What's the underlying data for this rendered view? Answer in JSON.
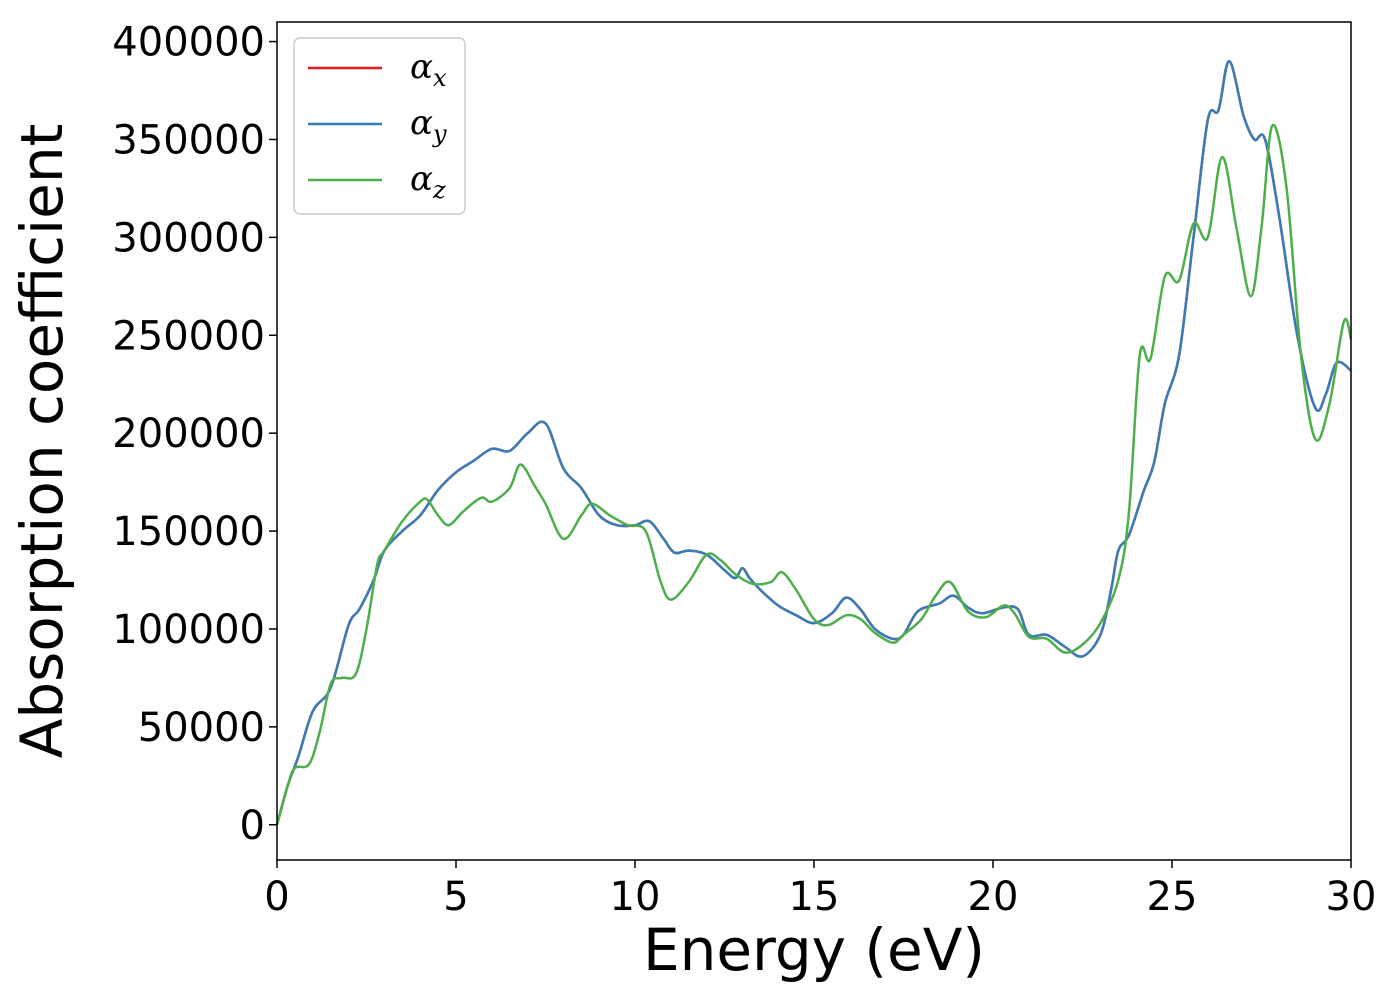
{
  "chart_data": {
    "type": "line",
    "title": "",
    "xlabel": "Energy (eV)",
    "ylabel": "Absorption coefficient",
    "xlim": [
      0,
      30
    ],
    "ylim": [
      -18000,
      410000
    ],
    "xticks": [
      0,
      5,
      10,
      15,
      20,
      25,
      30
    ],
    "yticks": [
      0,
      50000,
      100000,
      150000,
      200000,
      250000,
      300000,
      350000,
      400000
    ],
    "grid": false,
    "legend_position": "top-left",
    "series": [
      {
        "name": "αx",
        "symbol": "α",
        "subscript": "x",
        "color": "#e41a1c",
        "points": [
          [
            0,
            0
          ],
          [
            0.3,
            20000
          ],
          [
            0.6,
            35000
          ],
          [
            1.0,
            58000
          ],
          [
            1.5,
            70000
          ],
          [
            2.0,
            102000
          ],
          [
            2.3,
            110000
          ],
          [
            2.7,
            125000
          ],
          [
            3.0,
            140000
          ],
          [
            3.5,
            150000
          ],
          [
            4.0,
            158000
          ],
          [
            4.5,
            171000
          ],
          [
            5.0,
            180000
          ],
          [
            5.5,
            186000
          ],
          [
            6.0,
            192000
          ],
          [
            6.5,
            191000
          ],
          [
            7.0,
            200000
          ],
          [
            7.5,
            205000
          ],
          [
            8.0,
            182000
          ],
          [
            8.5,
            172000
          ],
          [
            9.0,
            158000
          ],
          [
            9.5,
            153000
          ],
          [
            10.0,
            153000
          ],
          [
            10.4,
            155000
          ],
          [
            10.8,
            146000
          ],
          [
            11.1,
            139000
          ],
          [
            11.5,
            140000
          ],
          [
            12.0,
            138000
          ],
          [
            12.5,
            130000
          ],
          [
            12.8,
            126000
          ],
          [
            13.0,
            131000
          ],
          [
            13.2,
            126000
          ],
          [
            13.5,
            120000
          ],
          [
            14.0,
            112000
          ],
          [
            14.5,
            107000
          ],
          [
            15.0,
            103000
          ],
          [
            15.5,
            108000
          ],
          [
            15.9,
            116000
          ],
          [
            16.3,
            110000
          ],
          [
            16.7,
            100000
          ],
          [
            17.2,
            95000
          ],
          [
            17.5,
            97000
          ],
          [
            17.9,
            109000
          ],
          [
            18.5,
            113000
          ],
          [
            18.9,
            117000
          ],
          [
            19.3,
            111000
          ],
          [
            19.7,
            108000
          ],
          [
            20.3,
            111000
          ],
          [
            20.7,
            110000
          ],
          [
            21.0,
            97000
          ],
          [
            21.5,
            97000
          ],
          [
            22.0,
            91000
          ],
          [
            22.5,
            86000
          ],
          [
            23.0,
            97000
          ],
          [
            23.3,
            120000
          ],
          [
            23.5,
            140000
          ],
          [
            23.8,
            148000
          ],
          [
            24.2,
            170000
          ],
          [
            24.5,
            185000
          ],
          [
            24.8,
            215000
          ],
          [
            25.2,
            240000
          ],
          [
            25.6,
            300000
          ],
          [
            26.0,
            360000
          ],
          [
            26.3,
            365000
          ],
          [
            26.6,
            390000
          ],
          [
            27.0,
            362000
          ],
          [
            27.3,
            350000
          ],
          [
            27.6,
            350000
          ],
          [
            28.0,
            310000
          ],
          [
            28.5,
            250000
          ],
          [
            29.0,
            213000
          ],
          [
            29.3,
            220000
          ],
          [
            29.6,
            236000
          ],
          [
            30.0,
            232000
          ]
        ]
      },
      {
        "name": "αy",
        "symbol": "α",
        "subscript": "y",
        "color": "#377eb8",
        "points": [
          [
            0,
            0
          ],
          [
            0.3,
            20000
          ],
          [
            0.6,
            35000
          ],
          [
            1.0,
            58000
          ],
          [
            1.5,
            70000
          ],
          [
            2.0,
            102000
          ],
          [
            2.3,
            110000
          ],
          [
            2.7,
            125000
          ],
          [
            3.0,
            140000
          ],
          [
            3.5,
            150000
          ],
          [
            4.0,
            158000
          ],
          [
            4.5,
            171000
          ],
          [
            5.0,
            180000
          ],
          [
            5.5,
            186000
          ],
          [
            6.0,
            192000
          ],
          [
            6.5,
            191000
          ],
          [
            7.0,
            200000
          ],
          [
            7.5,
            205000
          ],
          [
            8.0,
            182000
          ],
          [
            8.5,
            172000
          ],
          [
            9.0,
            158000
          ],
          [
            9.5,
            153000
          ],
          [
            10.0,
            153000
          ],
          [
            10.4,
            155000
          ],
          [
            10.8,
            146000
          ],
          [
            11.1,
            139000
          ],
          [
            11.5,
            140000
          ],
          [
            12.0,
            138000
          ],
          [
            12.5,
            130000
          ],
          [
            12.8,
            126000
          ],
          [
            13.0,
            131000
          ],
          [
            13.2,
            126000
          ],
          [
            13.5,
            120000
          ],
          [
            14.0,
            112000
          ],
          [
            14.5,
            107000
          ],
          [
            15.0,
            103000
          ],
          [
            15.5,
            108000
          ],
          [
            15.9,
            116000
          ],
          [
            16.3,
            110000
          ],
          [
            16.7,
            100000
          ],
          [
            17.2,
            95000
          ],
          [
            17.5,
            97000
          ],
          [
            17.9,
            109000
          ],
          [
            18.5,
            113000
          ],
          [
            18.9,
            117000
          ],
          [
            19.3,
            111000
          ],
          [
            19.7,
            108000
          ],
          [
            20.3,
            111000
          ],
          [
            20.7,
            110000
          ],
          [
            21.0,
            97000
          ],
          [
            21.5,
            97000
          ],
          [
            22.0,
            91000
          ],
          [
            22.5,
            86000
          ],
          [
            23.0,
            97000
          ],
          [
            23.3,
            120000
          ],
          [
            23.5,
            140000
          ],
          [
            23.8,
            148000
          ],
          [
            24.2,
            170000
          ],
          [
            24.5,
            185000
          ],
          [
            24.8,
            215000
          ],
          [
            25.2,
            240000
          ],
          [
            25.6,
            300000
          ],
          [
            26.0,
            360000
          ],
          [
            26.3,
            365000
          ],
          [
            26.6,
            390000
          ],
          [
            27.0,
            362000
          ],
          [
            27.3,
            350000
          ],
          [
            27.6,
            350000
          ],
          [
            28.0,
            310000
          ],
          [
            28.5,
            250000
          ],
          [
            29.0,
            213000
          ],
          [
            29.3,
            220000
          ],
          [
            29.6,
            236000
          ],
          [
            30.0,
            232000
          ]
        ]
      },
      {
        "name": "αz",
        "symbol": "α",
        "subscript": "z",
        "color": "#4daf4a",
        "points": [
          [
            0,
            0
          ],
          [
            0.3,
            20000
          ],
          [
            0.5,
            29000
          ],
          [
            0.9,
            31000
          ],
          [
            1.2,
            48000
          ],
          [
            1.5,
            72000
          ],
          [
            1.8,
            75000
          ],
          [
            2.2,
            77000
          ],
          [
            2.5,
            100000
          ],
          [
            2.8,
            133000
          ],
          [
            3.0,
            140000
          ],
          [
            3.5,
            155000
          ],
          [
            4.0,
            165000
          ],
          [
            4.2,
            166000
          ],
          [
            4.5,
            158000
          ],
          [
            4.8,
            153000
          ],
          [
            5.2,
            160000
          ],
          [
            5.7,
            167000
          ],
          [
            6.0,
            165000
          ],
          [
            6.5,
            172000
          ],
          [
            6.8,
            184000
          ],
          [
            7.2,
            173000
          ],
          [
            7.5,
            164000
          ],
          [
            8.0,
            146000
          ],
          [
            8.5,
            158000
          ],
          [
            8.8,
            164000
          ],
          [
            9.3,
            158000
          ],
          [
            9.8,
            153000
          ],
          [
            10.3,
            150000
          ],
          [
            10.7,
            125000
          ],
          [
            11.0,
            115000
          ],
          [
            11.5,
            124000
          ],
          [
            12.0,
            138000
          ],
          [
            12.4,
            135000
          ],
          [
            12.8,
            128000
          ],
          [
            13.3,
            123000
          ],
          [
            13.8,
            124000
          ],
          [
            14.1,
            129000
          ],
          [
            14.5,
            120000
          ],
          [
            15.0,
            105000
          ],
          [
            15.4,
            102000
          ],
          [
            15.9,
            107000
          ],
          [
            16.3,
            105000
          ],
          [
            16.7,
            98000
          ],
          [
            17.2,
            93000
          ],
          [
            17.5,
            97000
          ],
          [
            18.0,
            105000
          ],
          [
            18.4,
            117000
          ],
          [
            18.8,
            124000
          ],
          [
            19.3,
            109000
          ],
          [
            19.8,
            106000
          ],
          [
            20.3,
            112000
          ],
          [
            20.6,
            108000
          ],
          [
            21.0,
            96000
          ],
          [
            21.5,
            95000
          ],
          [
            22.0,
            88000
          ],
          [
            22.5,
            92000
          ],
          [
            23.0,
            103000
          ],
          [
            23.5,
            125000
          ],
          [
            23.8,
            160000
          ],
          [
            24.1,
            240000
          ],
          [
            24.4,
            238000
          ],
          [
            24.8,
            280000
          ],
          [
            25.2,
            278000
          ],
          [
            25.6,
            307000
          ],
          [
            26.0,
            300000
          ],
          [
            26.4,
            341000
          ],
          [
            26.8,
            305000
          ],
          [
            27.2,
            270000
          ],
          [
            27.5,
            305000
          ],
          [
            27.8,
            357000
          ],
          [
            28.2,
            325000
          ],
          [
            28.6,
            240000
          ],
          [
            29.0,
            197000
          ],
          [
            29.4,
            215000
          ],
          [
            29.8,
            257000
          ],
          [
            30.0,
            248000
          ]
        ]
      }
    ]
  }
}
